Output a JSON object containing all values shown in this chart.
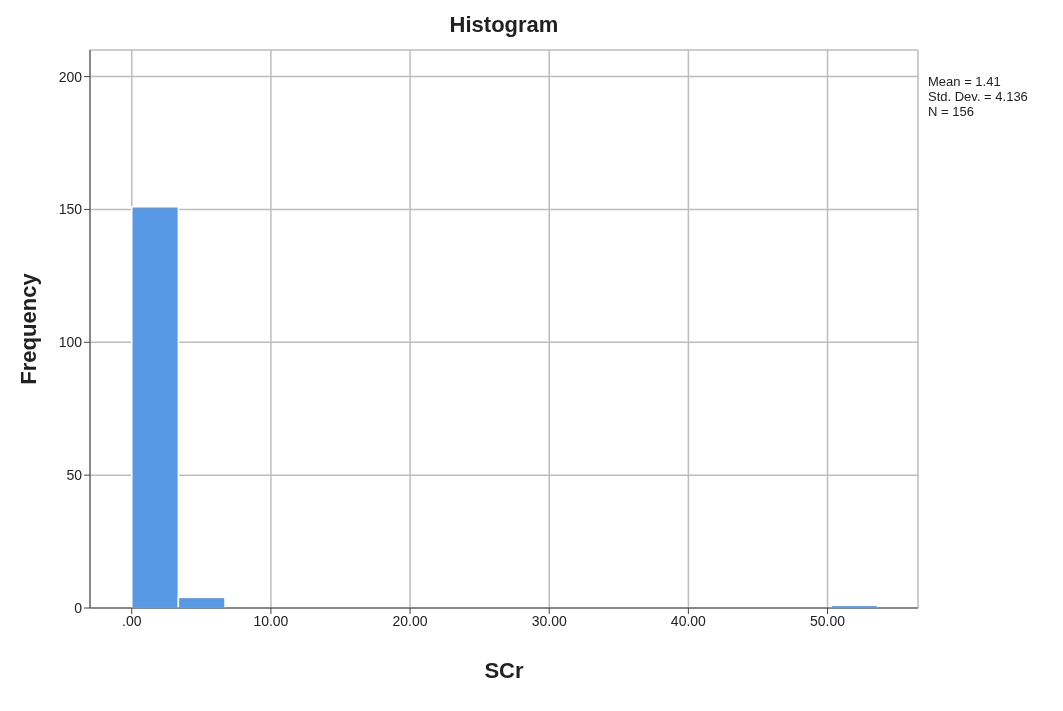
{
  "chart_data": {
    "type": "histogram",
    "title": "Histogram",
    "xlabel": "SCr",
    "ylabel": "Frequency",
    "bins": [
      0,
      3.35,
      6.7,
      10.05,
      13.4,
      16.75,
      20.1,
      23.45,
      26.8,
      30.15,
      33.5,
      36.85,
      40.2,
      43.55,
      46.9,
      50.25,
      53.6
    ],
    "values": [
      151,
      4,
      0,
      0,
      0,
      0,
      0,
      0,
      0,
      0,
      0,
      0,
      0,
      0,
      0,
      1
    ],
    "color": "#5899e6",
    "xlim": [
      -3,
      56.5
    ],
    "ylim": [
      0,
      210
    ],
    "xticks": [
      {
        "value": 0,
        "label": ".00"
      },
      {
        "value": 10,
        "label": "10.00"
      },
      {
        "value": 20,
        "label": "20.00"
      },
      {
        "value": 30,
        "label": "30.00"
      },
      {
        "value": 40,
        "label": "40.00"
      },
      {
        "value": 50,
        "label": "50.00"
      }
    ],
    "yticks": [
      0,
      50,
      100,
      150,
      200
    ],
    "grid": true,
    "annotations": [
      "Mean = 1.41",
      "Std. Dev. = 4.136",
      "N = 156"
    ]
  }
}
